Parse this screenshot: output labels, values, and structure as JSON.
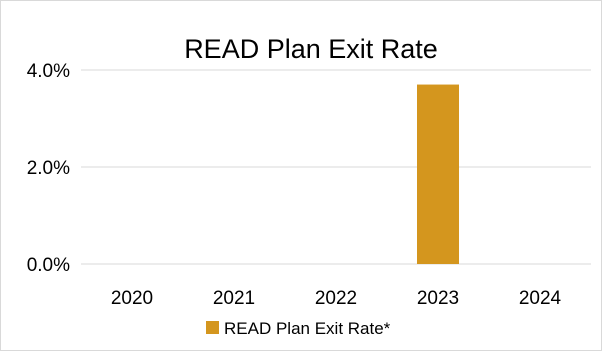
{
  "chart_data": {
    "type": "bar",
    "title": "READ Plan Exit Rate",
    "xlabel": "",
    "ylabel": "",
    "categories": [
      "2020",
      "2021",
      "2022",
      "2023",
      "2024"
    ],
    "series": [
      {
        "name": "READ Plan Exit Rate*",
        "values": [
          0,
          0,
          0,
          0.037,
          0
        ],
        "color": "#d4961e"
      }
    ],
    "ylim": [
      0,
      0.04
    ],
    "yticks": [
      0,
      0.02,
      0.04
    ],
    "ytick_labels": [
      "0.0%",
      "2.0%",
      "4.0%"
    ],
    "grid": true,
    "gridline_color": "#d9d9d9",
    "legend_position": "bottom"
  }
}
